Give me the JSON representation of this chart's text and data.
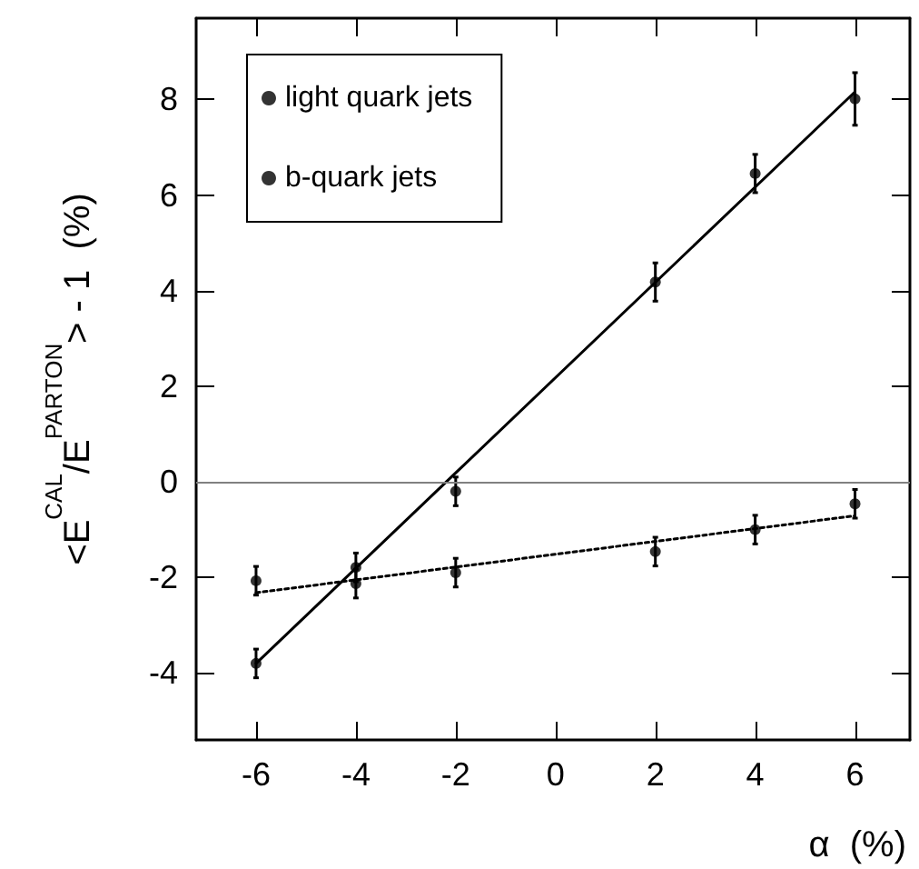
{
  "chart_data": {
    "type": "scatter",
    "ylabel": "<E$^{CAL}$/E$^{PARTON}$> - 1  (%)",
    "xlabel": "α  (%)",
    "xlim": [
      -7.2,
      7.1
    ],
    "xticks": [
      -6,
      -4,
      -2,
      0,
      2,
      4,
      6
    ],
    "ylim": [
      -5.4,
      9.7
    ],
    "yticks": [
      -4,
      -2,
      0,
      2,
      4,
      6,
      8
    ],
    "grid": false,
    "legend": "top left",
    "marker": "circle",
    "ref_lines": [
      {
        "axis": "y",
        "value": 0,
        "color": "#808080"
      }
    ],
    "series": [
      {
        "name": "light quark jets",
        "color": "#000000",
        "line_style": "dotted",
        "x": [
          -6,
          -4,
          -2,
          2,
          4,
          6
        ],
        "values": [
          -2.07,
          -2.13,
          -1.9,
          -1.46,
          -1.0,
          -0.46
        ],
        "errors": [
          0.3,
          0.3,
          0.3,
          0.3,
          0.3,
          0.3
        ]
      },
      {
        "name": "b-quark jets",
        "color": "#000000",
        "line_style": "solid",
        "x": [
          -6,
          -4,
          -2,
          2,
          4,
          6
        ],
        "values": [
          -3.8,
          -1.79,
          -0.2,
          4.18,
          6.45,
          8.01
        ],
        "errors": [
          0.3,
          0.3,
          0.3,
          0.4,
          0.4,
          0.55
        ]
      },
      {
        "type": "line",
        "color": "#000000",
        "line_style": "dotted",
        "marker": "none",
        "x": [
          -6,
          6
        ],
        "values": [
          -2.32,
          -0.71
        ]
      },
      {
        "type": "line",
        "color": "#000000",
        "line_style": "solid",
        "marker": "none",
        "x": [
          -6,
          6
        ],
        "values": [
          -3.8,
          8.16
        ]
      }
    ]
  }
}
